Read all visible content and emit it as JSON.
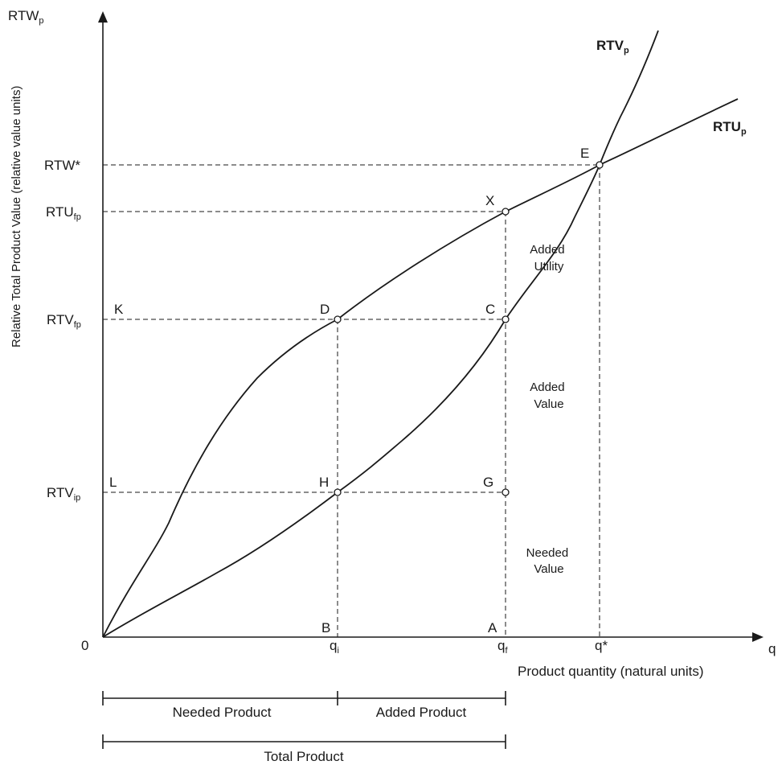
{
  "y_axis": {
    "title": "Relative Total Product Value (relative value units)",
    "top_label": {
      "main": "RTW",
      "sub": "p"
    }
  },
  "x_axis": {
    "title": "Product quantity (natural units)",
    "end_label": "q",
    "origin_label": "0"
  },
  "y_ticks": {
    "rtw_star": {
      "main": "RTW*",
      "sub": ""
    },
    "rtu_fp": {
      "main": "RTU",
      "sub": "fp"
    },
    "rtv_fp": {
      "main": "RTV",
      "sub": "fp"
    },
    "rtv_ip": {
      "main": "RTV",
      "sub": "ip"
    }
  },
  "x_ticks": {
    "qi": {
      "main": "q",
      "sub": "i"
    },
    "qf": {
      "main": "q",
      "sub": "f"
    },
    "qstar": {
      "main": "q*",
      "sub": ""
    }
  },
  "curves": {
    "rtv": {
      "main": "RTV",
      "sub": "p"
    },
    "rtu": {
      "main": "RTU",
      "sub": "p"
    }
  },
  "points": {
    "E": "E",
    "X": "X",
    "D": "D",
    "C": "C",
    "K": "K",
    "L": "L",
    "H": "H",
    "G": "G",
    "B": "B",
    "A": "A"
  },
  "regions": {
    "added_utility": [
      "Added",
      "Utility"
    ],
    "added_value": [
      "Added",
      "Value"
    ],
    "needed_value": [
      "Needed",
      "Value"
    ]
  },
  "brackets": {
    "needed_product": "Needed Product",
    "added_product": "Added Product",
    "total_product": "Total Product"
  }
}
